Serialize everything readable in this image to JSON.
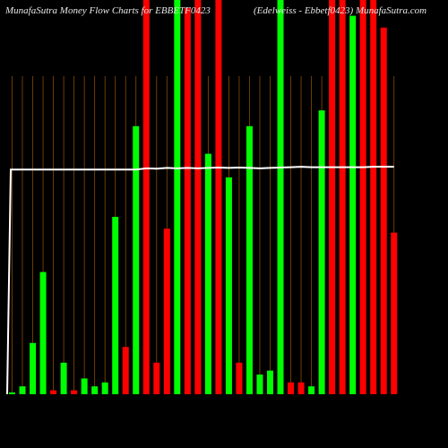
{
  "page": {
    "title_left": "MunafaSutra  Money Flow  Charts for EBBETF0423",
    "title_right": "(Edelweiss - Ebbetf0423)  MunafaSutra.com"
  },
  "colors": {
    "background": "#000000",
    "up": "#00ff00",
    "down": "#ff0000",
    "grid": "#8a4b00",
    "line": "#ffffff",
    "text": "#e8e8e8"
  },
  "chart_data": {
    "type": "bar",
    "title": "MunafaSutra  Money Flow  Charts for EBBETF0423",
    "ylim": [
      0,
      100
    ],
    "bar_top_pct": [
      0,
      2,
      13,
      31,
      1,
      8,
      1,
      4,
      2,
      3,
      45,
      12,
      68,
      100,
      8,
      42,
      100,
      98,
      100,
      61,
      100,
      55,
      8,
      68,
      5,
      6,
      100,
      3,
      3,
      2,
      72,
      100,
      100,
      96,
      100,
      100,
      93,
      41
    ],
    "bar_colors": [
      "green",
      "green",
      "green",
      "green",
      "red",
      "green",
      "red",
      "green",
      "green",
      "green",
      "green",
      "red",
      "green",
      "red",
      "red",
      "red",
      "green",
      "red",
      "red",
      "green",
      "red",
      "green",
      "red",
      "green",
      "green",
      "green",
      "green",
      "red",
      "red",
      "green",
      "green",
      "red",
      "red",
      "green",
      "red",
      "red",
      "red",
      "red"
    ],
    "line_pct": [
      57,
      57,
      57,
      57,
      57,
      57,
      57,
      57,
      57,
      57,
      57,
      57,
      57,
      57.3,
      57.2,
      57.4,
      57.3,
      57.4,
      57.3,
      57.4,
      57.5,
      57.4,
      57.5,
      57.4,
      57.3,
      57.4,
      57.5,
      57.6,
      57.7,
      57.6,
      57.6,
      57.6,
      57.6,
      57.6,
      57.6,
      57.7,
      57.7,
      57.7
    ],
    "grid_lines": true
  }
}
